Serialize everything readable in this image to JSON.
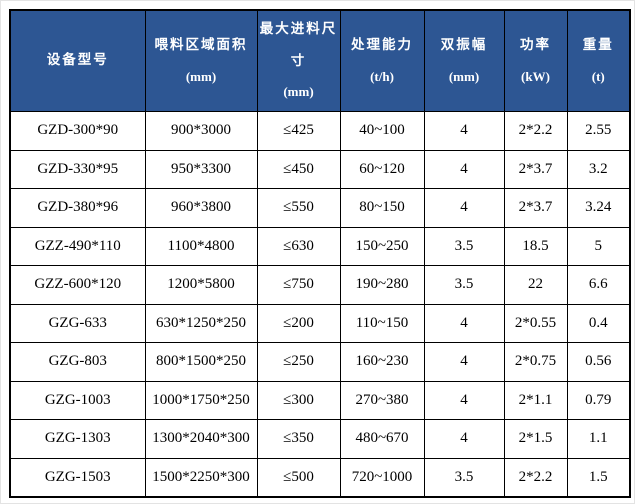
{
  "table": {
    "columns": [
      {
        "label": "设备型号",
        "unit": ""
      },
      {
        "label": "喂料区域面积",
        "unit": "(mm)"
      },
      {
        "label": "最大进料尺寸",
        "unit": "(mm)"
      },
      {
        "label": "处理能力",
        "unit": "(t/h)"
      },
      {
        "label": "双振幅",
        "unit": "(mm)"
      },
      {
        "label": "功率",
        "unit": "(kW)"
      },
      {
        "label": "重量",
        "unit": "(t)"
      }
    ],
    "rows": [
      [
        "GZD-300*90",
        "900*3000",
        "≤425",
        "40~100",
        "4",
        "2*2.2",
        "2.55"
      ],
      [
        "GZD-330*95",
        "950*3300",
        "≤450",
        "60~120",
        "4",
        "2*3.7",
        "3.2"
      ],
      [
        "GZD-380*96",
        "960*3800",
        "≤550",
        "80~150",
        "4",
        "2*3.7",
        "3.24"
      ],
      [
        "GZZ-490*110",
        "1100*4800",
        "≤630",
        "150~250",
        "3.5",
        "18.5",
        "5"
      ],
      [
        "GZZ-600*120",
        "1200*5800",
        "≤750",
        "190~280",
        "3.5",
        "22",
        "6.6"
      ],
      [
        "GZG-633",
        "630*1250*250",
        "≤200",
        "110~150",
        "4",
        "2*0.55",
        "0.4"
      ],
      [
        "GZG-803",
        "800*1500*250",
        "≤250",
        "160~230",
        "4",
        "2*0.75",
        "0.56"
      ],
      [
        "GZG-1003",
        "1000*1750*250",
        "≤300",
        "270~380",
        "4",
        "2*1.1",
        "0.79"
      ],
      [
        "GZG-1303",
        "1300*2040*300",
        "≤350",
        "480~670",
        "4",
        "2*1.5",
        "1.1"
      ],
      [
        "GZG-1503",
        "1500*2250*300",
        "≤500",
        "720~1000",
        "3.5",
        "2*2.2",
        "1.5"
      ]
    ],
    "colors": {
      "header_bg": "#2d5693",
      "header_text": "#ffffff",
      "border": "#000000",
      "cell_text": "#000000",
      "row_bg": "#ffffff"
    }
  }
}
